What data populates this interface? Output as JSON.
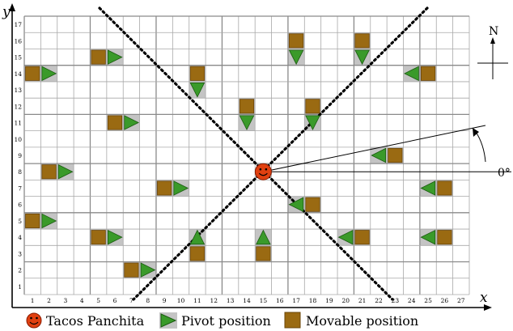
{
  "axes": {
    "x_label": "x",
    "y_label": "y",
    "x_ticks": [
      "1",
      "2",
      "3",
      "4",
      "5",
      "6",
      "7",
      "8",
      "9",
      "10",
      "11",
      "12",
      "13",
      "14",
      "15",
      "16",
      "17",
      "18",
      "19",
      "20",
      "21",
      "22",
      "23",
      "24",
      "25",
      "26",
      "27"
    ],
    "y_ticks": [
      "1",
      "2",
      "3",
      "4",
      "5",
      "6",
      "7",
      "8",
      "9",
      "10",
      "11",
      "12",
      "13",
      "14",
      "15",
      "16",
      "17"
    ]
  },
  "compass": {
    "label": "N"
  },
  "angle_label": "0°",
  "legend": {
    "items": [
      {
        "label": "Tacos Panchita",
        "marker": "smiley-icon"
      },
      {
        "label": "Pivot position",
        "marker": "green-triangle-icon"
      },
      {
        "label": "Movable position",
        "marker": "brown-square-icon"
      }
    ]
  },
  "colors": {
    "grid_line": "#a8a8a8",
    "major_grid": "#8a8a8a",
    "pivot_green": "#3a9a2a",
    "movable_brown": "#9a6a12",
    "cell_shade": "#c4c4c4",
    "tacos_red": "#e04010"
  },
  "center": {
    "x": 15,
    "y": 8
  },
  "objects": [
    {
      "x": 1,
      "y": 14,
      "pivot": "right"
    },
    {
      "x": 5,
      "y": 15,
      "pivot": "right"
    },
    {
      "x": 6,
      "y": 11,
      "pivot": "right"
    },
    {
      "x": 2,
      "y": 8,
      "pivot": "right"
    },
    {
      "x": 1,
      "y": 5,
      "pivot": "right"
    },
    {
      "x": 5,
      "y": 4,
      "pivot": "right"
    },
    {
      "x": 7,
      "y": 2,
      "pivot": "right"
    },
    {
      "x": 9,
      "y": 7,
      "pivot": "right"
    },
    {
      "x": 11,
      "y": 14,
      "pivot": "down"
    },
    {
      "x": 17,
      "y": 16,
      "pivot": "down"
    },
    {
      "x": 21,
      "y": 16,
      "pivot": "down"
    },
    {
      "x": 14,
      "y": 12,
      "pivot": "down"
    },
    {
      "x": 18,
      "y": 12,
      "pivot": "down"
    },
    {
      "x": 25,
      "y": 14,
      "pivot": "left"
    },
    {
      "x": 23,
      "y": 9,
      "pivot": "left"
    },
    {
      "x": 26,
      "y": 7,
      "pivot": "left"
    },
    {
      "x": 18,
      "y": 6,
      "pivot": "left"
    },
    {
      "x": 21,
      "y": 4,
      "pivot": "left"
    },
    {
      "x": 26,
      "y": 4,
      "pivot": "left"
    },
    {
      "x": 11,
      "y": 3,
      "pivot": "up"
    },
    {
      "x": 15,
      "y": 3,
      "pivot": "up"
    }
  ]
}
